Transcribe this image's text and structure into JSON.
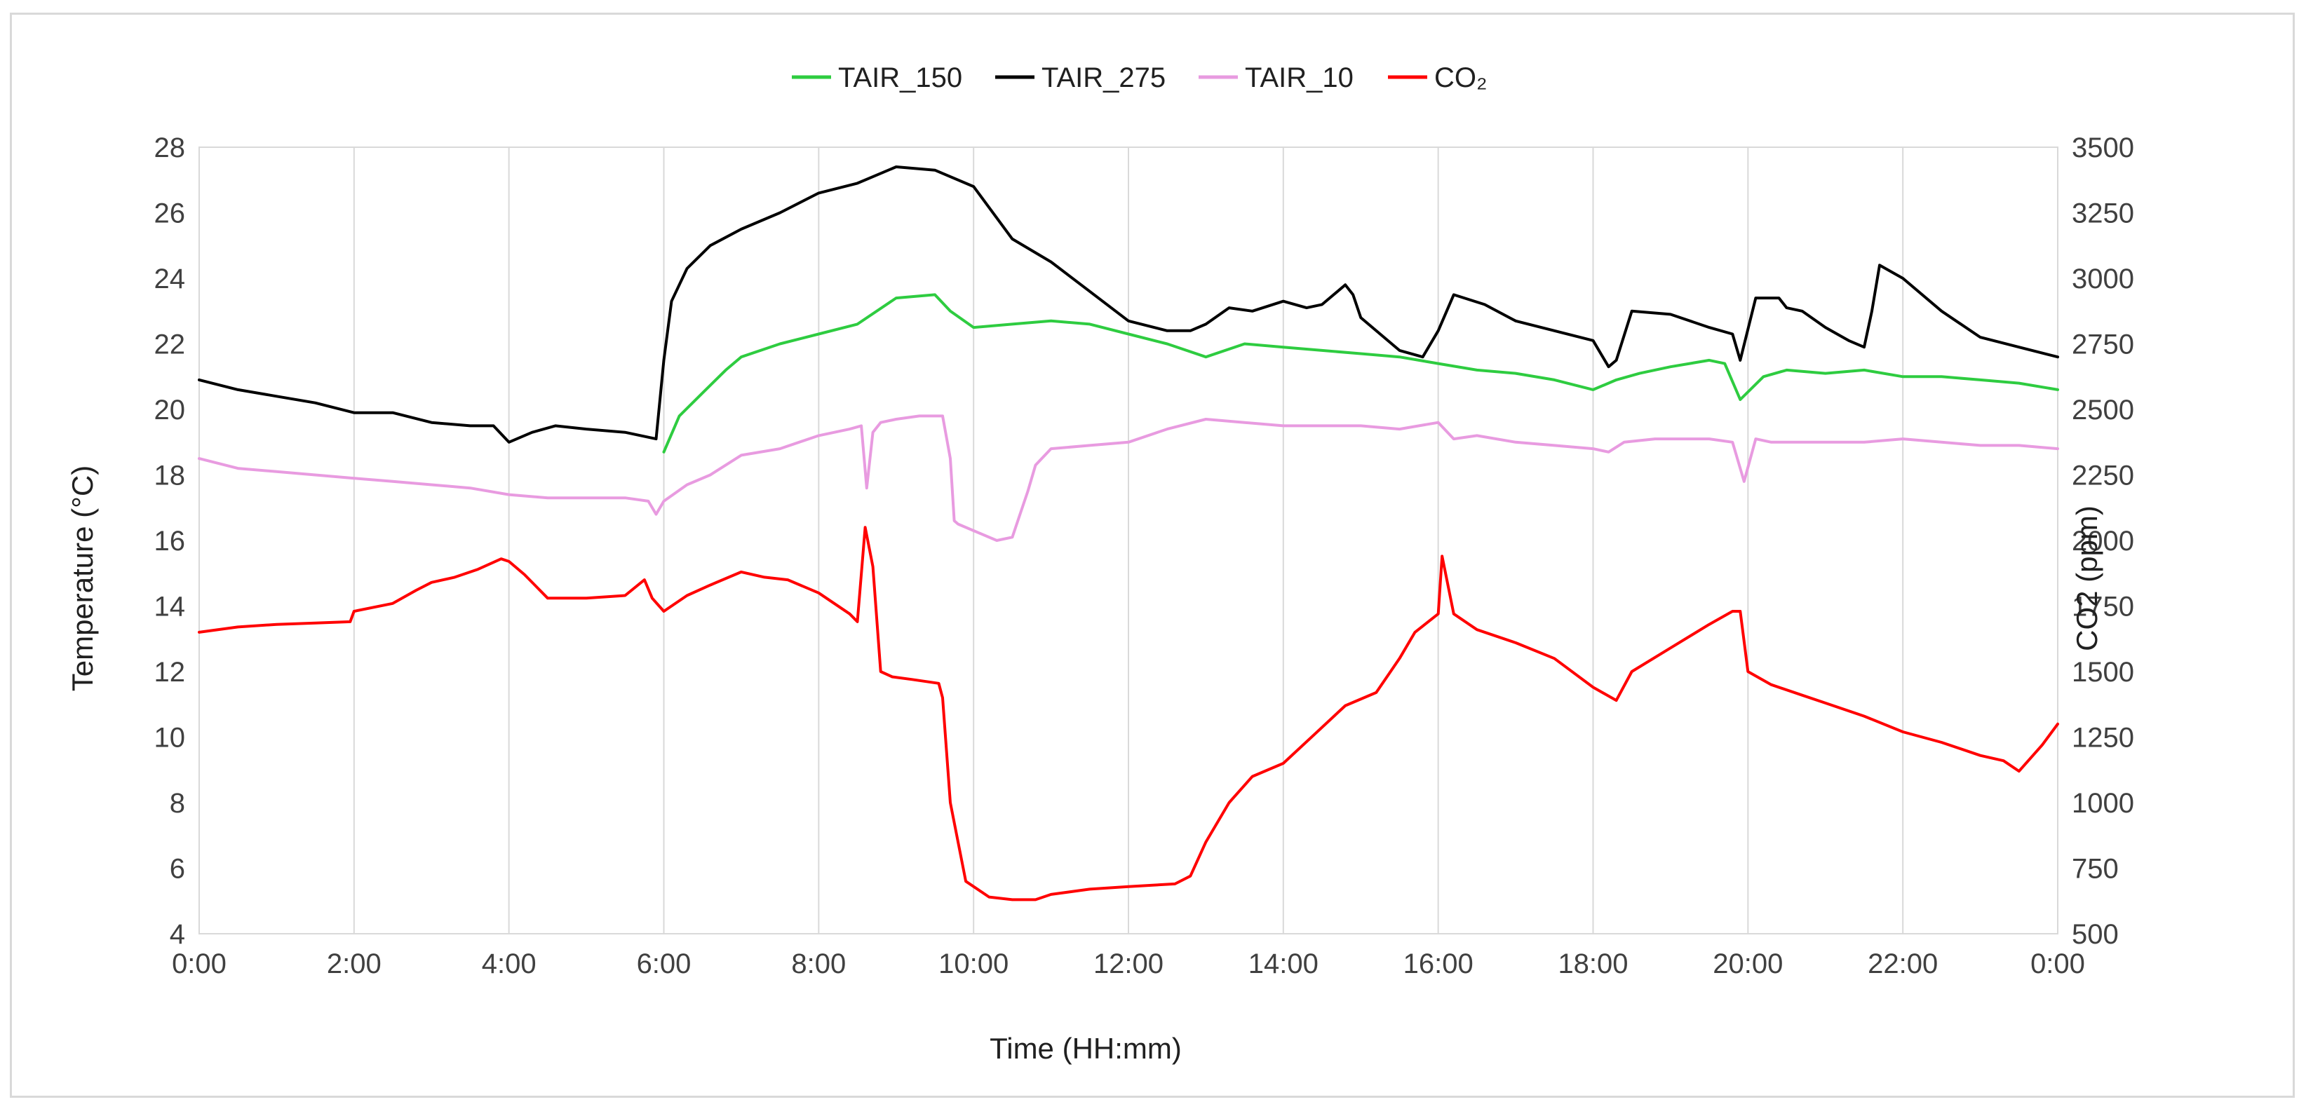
{
  "chart_data": {
    "type": "line",
    "xlabel": "Time (HH:mm)",
    "ylabel_left": "Temperature (°C)",
    "ylabel_right": "CO2 (ppm)",
    "x_ticks": [
      "0:00",
      "2:00",
      "4:00",
      "6:00",
      "8:00",
      "10:00",
      "12:00",
      "14:00",
      "16:00",
      "18:00",
      "20:00",
      "22:00",
      "0:00"
    ],
    "x_range_hours": [
      0,
      24
    ],
    "ylim_left": [
      4,
      28
    ],
    "y_ticks_left": [
      4,
      6,
      8,
      10,
      12,
      14,
      16,
      18,
      20,
      22,
      24,
      26,
      28
    ],
    "ylim_right": [
      500,
      3500
    ],
    "y_ticks_right": [
      500,
      750,
      1000,
      1250,
      1500,
      1750,
      2000,
      2250,
      2500,
      2750,
      3000,
      3250,
      3500
    ],
    "grid": "vertical",
    "legend_position": "top-center",
    "series": [
      {
        "name": "TAIR_150",
        "axis": "left",
        "color": "#2ecc40",
        "x": [
          6.0,
          6.2,
          6.5,
          6.8,
          7.0,
          7.5,
          8.0,
          8.5,
          9.0,
          9.5,
          9.7,
          10.0,
          10.5,
          11.0,
          11.5,
          12.0,
          12.5,
          13.0,
          13.5,
          14.0,
          14.5,
          15.0,
          15.5,
          16.0,
          16.5,
          17.0,
          17.5,
          18.0,
          18.3,
          18.6,
          19.0,
          19.5,
          19.7,
          19.9,
          20.2,
          20.5,
          21.0,
          21.5,
          22.0,
          22.5,
          23.0,
          23.5,
          24.0
        ],
        "y": [
          18.7,
          19.8,
          20.5,
          21.2,
          21.6,
          22.0,
          22.3,
          22.6,
          23.4,
          23.5,
          23.0,
          22.5,
          22.6,
          22.7,
          22.6,
          22.3,
          22.0,
          21.6,
          22.0,
          21.9,
          21.8,
          21.7,
          21.6,
          21.4,
          21.2,
          21.1,
          20.9,
          20.6,
          20.9,
          21.1,
          21.3,
          21.5,
          21.4,
          20.3,
          21.0,
          21.2,
          21.1,
          21.2,
          21.0,
          21.0,
          20.9,
          20.8,
          20.6
        ]
      },
      {
        "name": "TAIR_275",
        "axis": "left",
        "color": "#000000",
        "x": [
          0.0,
          0.5,
          1.0,
          1.5,
          2.0,
          2.5,
          3.0,
          3.5,
          3.8,
          4.0,
          4.3,
          4.6,
          5.0,
          5.5,
          5.9,
          6.0,
          6.1,
          6.3,
          6.6,
          7.0,
          7.5,
          8.0,
          8.5,
          9.0,
          9.5,
          10.0,
          10.5,
          11.0,
          11.5,
          12.0,
          12.5,
          12.8,
          13.0,
          13.3,
          13.6,
          14.0,
          14.3,
          14.5,
          14.8,
          14.9,
          15.0,
          15.5,
          15.8,
          16.0,
          16.2,
          16.6,
          17.0,
          17.5,
          18.0,
          18.2,
          18.3,
          18.5,
          19.0,
          19.5,
          19.8,
          19.9,
          20.1,
          20.4,
          20.5,
          20.7,
          21.0,
          21.3,
          21.5,
          21.6,
          21.7,
          22.0,
          22.5,
          23.0,
          23.5,
          24.0
        ],
        "y": [
          20.9,
          20.6,
          20.4,
          20.2,
          19.9,
          19.9,
          19.6,
          19.5,
          19.5,
          19.0,
          19.3,
          19.5,
          19.4,
          19.3,
          19.1,
          21.5,
          23.3,
          24.3,
          25.0,
          25.5,
          26.0,
          26.6,
          26.9,
          27.4,
          27.3,
          26.8,
          25.2,
          24.5,
          23.6,
          22.7,
          22.4,
          22.4,
          22.6,
          23.1,
          23.0,
          23.3,
          23.1,
          23.2,
          23.8,
          23.5,
          22.8,
          21.8,
          21.6,
          22.4,
          23.5,
          23.2,
          22.7,
          22.4,
          22.1,
          21.3,
          21.5,
          23.0,
          22.9,
          22.5,
          22.3,
          21.5,
          23.4,
          23.4,
          23.1,
          23.0,
          22.5,
          22.1,
          21.9,
          23.0,
          24.4,
          24.0,
          23.0,
          22.2,
          21.9,
          21.6
        ]
      },
      {
        "name": "TAIR_10",
        "axis": "left",
        "color": "#e89be0",
        "x": [
          0.0,
          0.5,
          1.0,
          1.5,
          2.0,
          2.5,
          3.0,
          3.5,
          4.0,
          4.5,
          5.0,
          5.5,
          5.8,
          5.9,
          6.0,
          6.3,
          6.6,
          7.0,
          7.5,
          8.0,
          8.4,
          8.55,
          8.62,
          8.7,
          8.8,
          9.0,
          9.3,
          9.6,
          9.7,
          9.75,
          9.8,
          10.0,
          10.3,
          10.5,
          10.6,
          10.7,
          10.8,
          11.0,
          11.5,
          12.0,
          12.5,
          13.0,
          13.5,
          14.0,
          14.5,
          15.0,
          15.5,
          16.0,
          16.2,
          16.5,
          17.0,
          17.5,
          18.0,
          18.2,
          18.4,
          18.8,
          19.5,
          19.8,
          19.95,
          20.1,
          20.3,
          20.6,
          21.0,
          21.5,
          22.0,
          22.5,
          23.0,
          23.5,
          24.0
        ],
        "y": [
          18.5,
          18.2,
          18.1,
          18.0,
          17.9,
          17.8,
          17.7,
          17.6,
          17.4,
          17.3,
          17.3,
          17.3,
          17.2,
          16.8,
          17.2,
          17.7,
          18.0,
          18.6,
          18.8,
          19.2,
          19.4,
          19.5,
          17.6,
          19.3,
          19.6,
          19.7,
          19.8,
          19.8,
          18.5,
          16.6,
          16.5,
          16.3,
          16.0,
          16.1,
          16.8,
          17.5,
          18.3,
          18.8,
          18.9,
          19.0,
          19.4,
          19.7,
          19.6,
          19.5,
          19.5,
          19.5,
          19.4,
          19.6,
          19.1,
          19.2,
          19.0,
          18.9,
          18.8,
          18.7,
          19.0,
          19.1,
          19.1,
          19.0,
          17.8,
          19.1,
          19.0,
          19.0,
          19.0,
          19.0,
          19.1,
          19.0,
          18.9,
          18.9,
          18.8
        ]
      },
      {
        "name": "CO₂",
        "axis": "right",
        "color": "#ff0000",
        "x": [
          0.0,
          0.5,
          1.0,
          1.5,
          1.95,
          2.0,
          2.5,
          2.8,
          3.0,
          3.3,
          3.6,
          3.9,
          4.0,
          4.2,
          4.5,
          5.0,
          5.5,
          5.75,
          5.85,
          6.0,
          6.3,
          6.6,
          7.0,
          7.3,
          7.6,
          8.0,
          8.4,
          8.5,
          8.6,
          8.7,
          8.8,
          8.95,
          9.2,
          9.55,
          9.6,
          9.7,
          9.9,
          10.0,
          10.2,
          10.5,
          10.8,
          11.0,
          11.5,
          12.0,
          12.6,
          12.8,
          13.0,
          13.3,
          13.6,
          14.0,
          14.4,
          14.8,
          15.2,
          15.5,
          15.7,
          16.0,
          16.05,
          16.2,
          16.5,
          17.0,
          17.5,
          18.0,
          18.3,
          18.5,
          19.0,
          19.5,
          19.8,
          19.9,
          20.0,
          20.3,
          20.7,
          21.0,
          21.5,
          22.0,
          22.5,
          23.0,
          23.3,
          23.5,
          23.8,
          24.0
        ],
        "y": [
          1650,
          1670,
          1680,
          1685,
          1690,
          1730,
          1760,
          1810,
          1840,
          1860,
          1890,
          1930,
          1920,
          1870,
          1780,
          1780,
          1790,
          1850,
          1780,
          1730,
          1790,
          1830,
          1880,
          1860,
          1850,
          1800,
          1720,
          1690,
          2050,
          1900,
          1500,
          1480,
          1470,
          1455,
          1400,
          1000,
          700,
          680,
          640,
          630,
          630,
          650,
          670,
          680,
          690,
          720,
          850,
          1000,
          1100,
          1150,
          1260,
          1370,
          1420,
          1550,
          1650,
          1720,
          1940,
          1720,
          1660,
          1610,
          1550,
          1440,
          1390,
          1500,
          1590,
          1680,
          1730,
          1730,
          1500,
          1450,
          1410,
          1380,
          1330,
          1270,
          1230,
          1180,
          1160,
          1120,
          1220,
          1300
        ]
      }
    ]
  }
}
